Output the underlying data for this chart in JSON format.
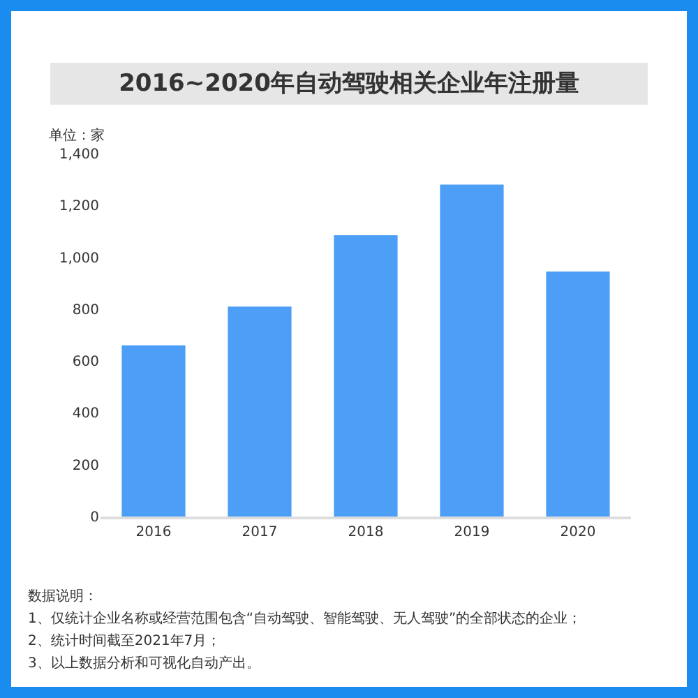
{
  "chart_data": {
    "type": "bar",
    "title": "2016~2020年自动驾驶相关企业年注册量",
    "ylabel": "单位：家",
    "categories": [
      "2016",
      "2017",
      "2018",
      "2019",
      "2020"
    ],
    "values": [
      660,
      810,
      1085,
      1280,
      945
    ],
    "color": "#4d9ef7",
    "ylim": [
      0,
      1400
    ],
    "yticks": [
      0,
      {
        "value": 200,
        "label": "200"
      },
      {
        "value": 400,
        "label": "400"
      },
      {
        "value": 600,
        "label": "600"
      },
      {
        "value": 800,
        "label": "800"
      },
      {
        "value": 1000,
        "label": "1,000"
      },
      {
        "value": 1200,
        "label": "1,200"
      },
      {
        "value": 1400,
        "label": "1,400"
      }
    ],
    "grid": false,
    "legend": false,
    "annotations": [
      "数据说明：",
      "1、仅统计企业名称或经营范围包含“自动驾驶、智能驾驶、无人驾驶”的全部状态的企业；",
      "2、统计时间截至2021年7月；",
      "3、以上数据分析和可视化自动产出。"
    ]
  }
}
